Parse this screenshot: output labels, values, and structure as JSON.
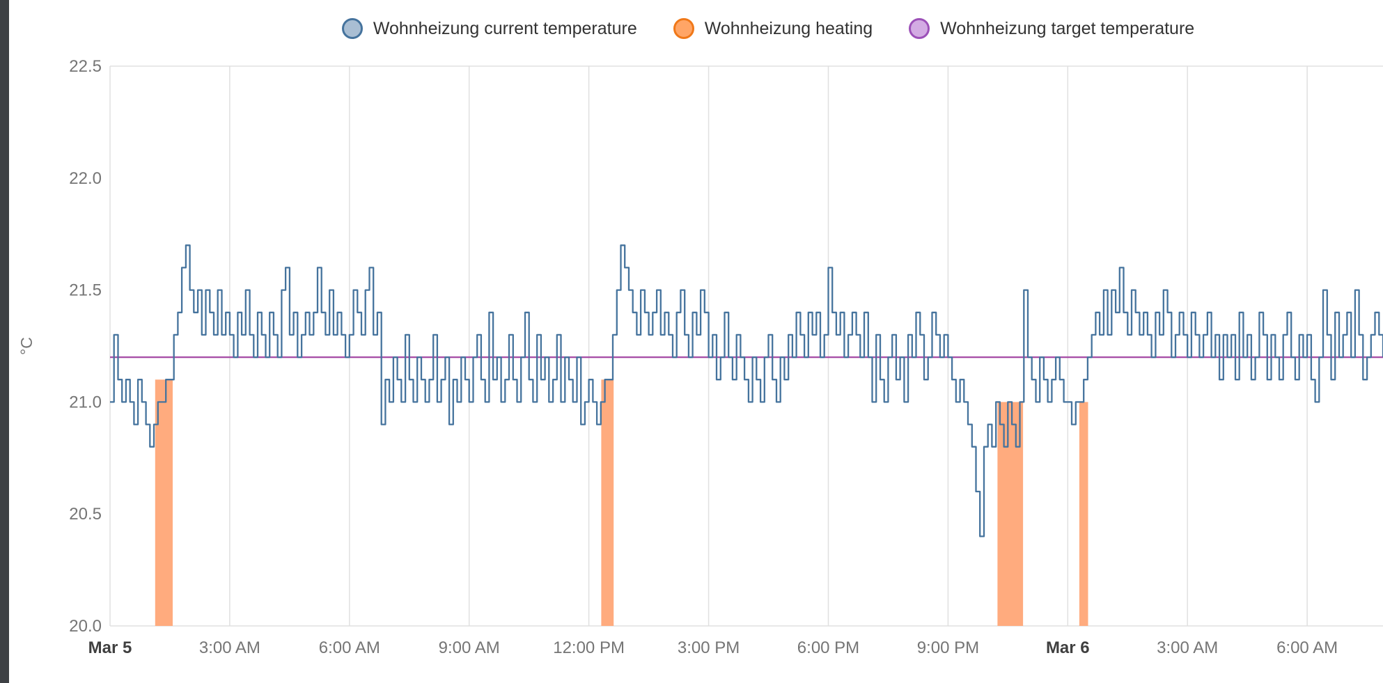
{
  "colors": {
    "background": "#ffffff",
    "sidebar": "#3d4044",
    "grid": "#e0e0e0",
    "tick": "#757575",
    "tick_bold": "#3f3f3f",
    "legend_text": "#333333",
    "current_temperature_line": "#45739d",
    "heating_fill": "#ffab7e",
    "target_temperature_line": "#a850a8"
  },
  "legend": {
    "items": [
      {
        "label": "Wohnheizung current temperature",
        "fill": "#a9bed3",
        "border": "#45739d"
      },
      {
        "label": "Wohnheizung heating",
        "fill": "#ffa566",
        "border": "#f07818"
      },
      {
        "label": "Wohnheizung target temperature",
        "fill": "#d3abe3",
        "border": "#9c50b8"
      }
    ],
    "position": "top"
  },
  "chart_data": {
    "type": "line",
    "title": "",
    "ylabel": "°C",
    "xlabel": "",
    "ylim": [
      20.0,
      22.5
    ],
    "x_range_hours": [
      0,
      31.9
    ],
    "grid": {
      "vertical": true,
      "horizontal": false
    },
    "y_ticks": [
      {
        "v": 20.0,
        "label": "20.0"
      },
      {
        "v": 20.5,
        "label": "20.5"
      },
      {
        "v": 21.0,
        "label": "21.0"
      },
      {
        "v": 21.5,
        "label": "21.5"
      },
      {
        "v": 22.0,
        "label": "22.0"
      },
      {
        "v": 22.5,
        "label": "22.5"
      }
    ],
    "x_ticks": [
      {
        "t": 0,
        "label": "Mar 5",
        "bold": true
      },
      {
        "t": 3,
        "label": "3:00 AM",
        "bold": false
      },
      {
        "t": 6,
        "label": "6:00 AM",
        "bold": false
      },
      {
        "t": 9,
        "label": "9:00 AM",
        "bold": false
      },
      {
        "t": 12,
        "label": "12:00 PM",
        "bold": false
      },
      {
        "t": 15,
        "label": "3:00 PM",
        "bold": false
      },
      {
        "t": 18,
        "label": "6:00 PM",
        "bold": false
      },
      {
        "t": 21,
        "label": "9:00 PM",
        "bold": false
      },
      {
        "t": 24,
        "label": "Mar 6",
        "bold": true
      },
      {
        "t": 27,
        "label": "3:00 AM",
        "bold": false
      },
      {
        "t": 30,
        "label": "6:00 AM",
        "bold": false
      }
    ],
    "series": [
      {
        "name": "Wohnheizung heating",
        "render": "bars",
        "color": "#ffab7e",
        "base": 20.0,
        "bars": [
          {
            "start": 1.13,
            "end": 1.57,
            "top": 21.1
          },
          {
            "start": 12.31,
            "end": 12.62,
            "top": 21.1
          },
          {
            "start": 22.24,
            "end": 22.88,
            "top": 21.0
          },
          {
            "start": 24.29,
            "end": 24.51,
            "top": 21.0
          }
        ]
      },
      {
        "name": "Wohnheizung target temperature",
        "render": "hline",
        "color": "#a850a8",
        "points": [
          [
            0,
            21.2
          ],
          [
            31.9,
            21.2
          ]
        ]
      },
      {
        "name": "Wohnheizung current temperature",
        "render": "step-line",
        "color": "#45739d",
        "interval_hours": 0.1,
        "values": [
          21.0,
          21.3,
          21.1,
          21.0,
          21.1,
          21.0,
          20.9,
          21.1,
          21.0,
          20.9,
          20.8,
          20.9,
          21.0,
          21.0,
          21.1,
          21.1,
          21.3,
          21.4,
          21.6,
          21.7,
          21.5,
          21.4,
          21.5,
          21.3,
          21.5,
          21.4,
          21.3,
          21.5,
          21.3,
          21.4,
          21.3,
          21.2,
          21.4,
          21.3,
          21.5,
          21.3,
          21.2,
          21.4,
          21.3,
          21.2,
          21.4,
          21.3,
          21.2,
          21.5,
          21.6,
          21.3,
          21.4,
          21.2,
          21.3,
          21.4,
          21.3,
          21.4,
          21.6,
          21.4,
          21.3,
          21.5,
          21.3,
          21.4,
          21.3,
          21.2,
          21.3,
          21.5,
          21.4,
          21.3,
          21.5,
          21.6,
          21.3,
          21.4,
          20.9,
          21.1,
          21.0,
          21.2,
          21.1,
          21.0,
          21.3,
          21.1,
          21.0,
          21.2,
          21.1,
          21.0,
          21.1,
          21.3,
          21.0,
          21.1,
          21.2,
          20.9,
          21.1,
          21.0,
          21.2,
          21.1,
          21.0,
          21.2,
          21.3,
          21.1,
          21.0,
          21.4,
          21.1,
          21.2,
          21.0,
          21.1,
          21.3,
          21.1,
          21.0,
          21.2,
          21.4,
          21.1,
          21.0,
          21.3,
          21.1,
          21.2,
          21.0,
          21.1,
          21.3,
          21.0,
          21.2,
          21.1,
          21.0,
          21.2,
          20.9,
          21.0,
          21.1,
          21.0,
          20.9,
          21.0,
          21.1,
          21.1,
          21.3,
          21.5,
          21.7,
          21.6,
          21.5,
          21.4,
          21.3,
          21.5,
          21.4,
          21.3,
          21.4,
          21.5,
          21.3,
          21.4,
          21.3,
          21.2,
          21.4,
          21.5,
          21.3,
          21.2,
          21.4,
          21.3,
          21.5,
          21.4,
          21.2,
          21.3,
          21.1,
          21.2,
          21.4,
          21.2,
          21.1,
          21.3,
          21.2,
          21.1,
          21.0,
          21.2,
          21.1,
          21.0,
          21.2,
          21.3,
          21.1,
          21.0,
          21.2,
          21.1,
          21.3,
          21.2,
          21.4,
          21.3,
          21.2,
          21.4,
          21.3,
          21.4,
          21.2,
          21.3,
          21.6,
          21.4,
          21.3,
          21.4,
          21.2,
          21.3,
          21.4,
          21.3,
          21.2,
          21.4,
          21.2,
          21.0,
          21.3,
          21.1,
          21.0,
          21.2,
          21.3,
          21.1,
          21.2,
          21.0,
          21.3,
          21.2,
          21.4,
          21.3,
          21.1,
          21.2,
          21.4,
          21.3,
          21.2,
          21.3,
          21.2,
          21.1,
          21.0,
          21.1,
          21.0,
          20.9,
          20.8,
          20.6,
          20.4,
          20.8,
          20.9,
          20.8,
          21.0,
          20.9,
          20.8,
          21.0,
          20.9,
          20.8,
          21.0,
          21.5,
          21.2,
          21.1,
          21.0,
          21.2,
          21.1,
          21.0,
          21.1,
          21.2,
          21.1,
          21.0,
          21.0,
          20.9,
          21.0,
          21.0,
          21.1,
          21.2,
          21.3,
          21.4,
          21.3,
          21.5,
          21.3,
          21.5,
          21.4,
          21.6,
          21.4,
          21.3,
          21.5,
          21.4,
          21.3,
          21.4,
          21.3,
          21.2,
          21.4,
          21.3,
          21.5,
          21.4,
          21.2,
          21.3,
          21.4,
          21.3,
          21.2,
          21.4,
          21.3,
          21.2,
          21.3,
          21.4,
          21.2,
          21.3,
          21.1,
          21.3,
          21.2,
          21.3,
          21.1,
          21.4,
          21.2,
          21.3,
          21.1,
          21.2,
          21.4,
          21.3,
          21.1,
          21.3,
          21.2,
          21.1,
          21.3,
          21.4,
          21.2,
          21.1,
          21.3,
          21.2,
          21.3,
          21.1,
          21.0,
          21.2,
          21.5,
          21.3,
          21.1,
          21.4,
          21.2,
          21.3,
          21.4,
          21.2,
          21.5,
          21.3,
          21.1,
          21.2,
          21.3,
          21.4,
          21.3,
          21.2
        ]
      }
    ]
  }
}
